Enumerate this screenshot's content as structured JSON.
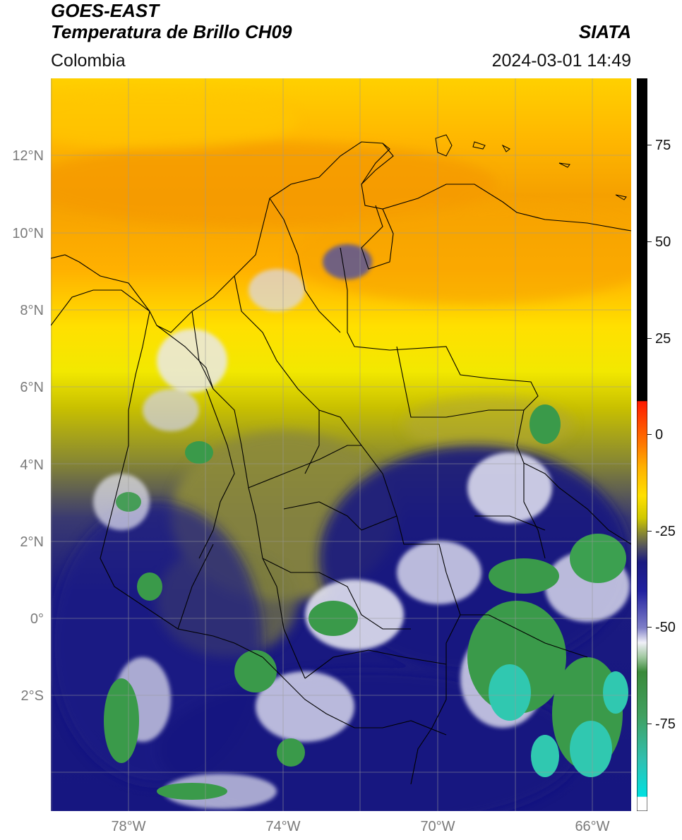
{
  "header": {
    "title_line1": "GOES-EAST",
    "title_line2": "Temperatura de Brillo CH09",
    "region": "Colombia",
    "agency": "SIATA",
    "datetime": "2024-03-01 14:49"
  },
  "map": {
    "lon_range": [
      -80,
      -65
    ],
    "lat_range": [
      -5,
      14
    ],
    "lat_ticks": [
      {
        "value": 12,
        "label": "12°N"
      },
      {
        "value": 10,
        "label": "10°N"
      },
      {
        "value": 8,
        "label": "8°N"
      },
      {
        "value": 6,
        "label": "6°N"
      },
      {
        "value": 4,
        "label": "4°N"
      },
      {
        "value": 2,
        "label": "2°N"
      },
      {
        "value": 0,
        "label": "0°"
      },
      {
        "value": -2,
        "label": "2°S"
      }
    ],
    "lon_ticks": [
      {
        "value": -78,
        "label": "78°W"
      },
      {
        "value": -74,
        "label": "74°W"
      },
      {
        "value": -70,
        "label": "70°W"
      },
      {
        "value": -66,
        "label": "66°W"
      }
    ],
    "colors": {
      "orange": "#f7a000",
      "yellow": "#ffe000",
      "olive": "#8a8a30",
      "navy": "#1a1a80",
      "white": "#f4f4f8",
      "green": "#3a9a4a",
      "teal": "#30c8b0"
    }
  },
  "colorbar": {
    "range": [
      -95,
      90
    ],
    "ticks": [
      {
        "value": 75,
        "label": "75"
      },
      {
        "value": 50,
        "label": "50"
      },
      {
        "value": 25,
        "label": "25"
      },
      {
        "value": 0,
        "label": "0"
      },
      {
        "value": -25,
        "label": "-25"
      },
      {
        "value": -50,
        "label": "-50"
      },
      {
        "value": -75,
        "label": "-75"
      }
    ]
  }
}
